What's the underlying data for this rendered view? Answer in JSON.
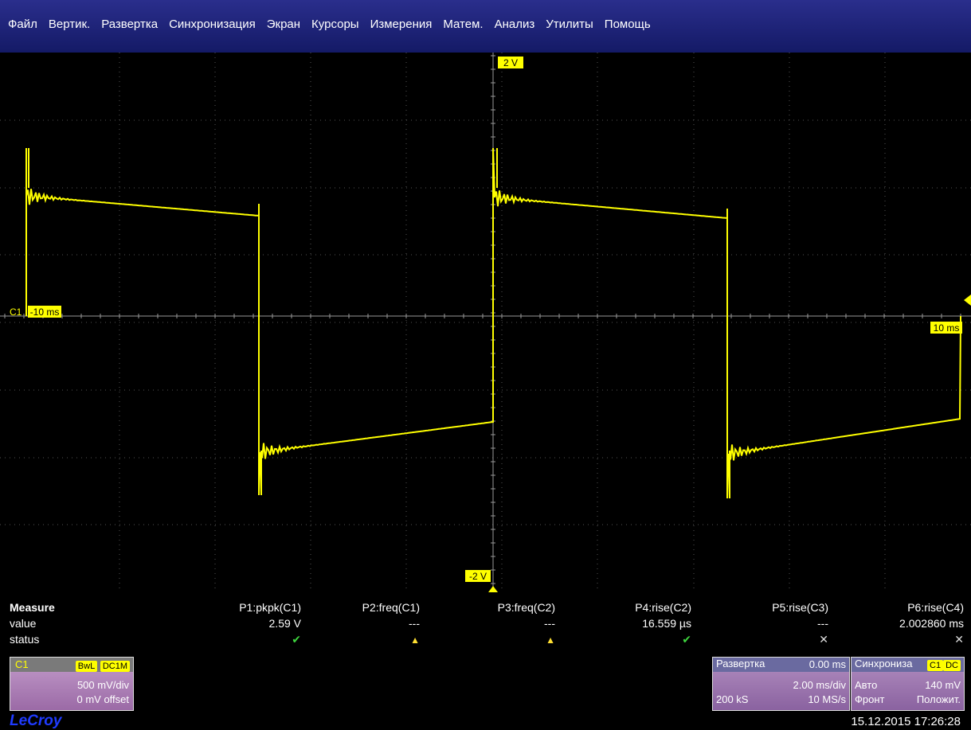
{
  "menu": [
    "Файл",
    "Вертик.",
    "Развертка",
    "Синхронизация",
    "Экран",
    "Курсоры",
    "Измерения",
    "Матем.",
    "Анализ",
    "Утилиты",
    "Помощь"
  ],
  "grid": {
    "top_label": "2 V",
    "bottom_label": "-2 V",
    "left_label": "-10 ms",
    "right_label": "10 ms",
    "channel_marker": "C1",
    "trace_color": "#ffff00"
  },
  "measure": {
    "title": "Measure",
    "value_label": "value",
    "status_label": "status",
    "params": [
      {
        "name": "P1:pkpk(C1)",
        "value": "2.59 V",
        "status": "ok"
      },
      {
        "name": "P2:freq(C1)",
        "value": "---",
        "status": "warn"
      },
      {
        "name": "P3:freq(C2)",
        "value": "---",
        "status": "warn"
      },
      {
        "name": "P4:rise(C2)",
        "value": "16.559 µs",
        "status": "ok"
      },
      {
        "name": "P5:rise(C3)",
        "value": "---",
        "status": "x"
      },
      {
        "name": "P6:rise(C4)",
        "value": "2.002860 ms",
        "status": "x"
      }
    ],
    "status_glyphs": {
      "ok": "✔",
      "warn": "▲",
      "x": "✕"
    }
  },
  "channel": {
    "name": "C1",
    "tag1": "BwL",
    "tag2": "DC1M",
    "vdiv": "500 mV/div",
    "offset": "0 mV offset"
  },
  "timebase": {
    "title": "Развертка",
    "delay": "0.00 ms",
    "tdiv": "2.00 ms/div",
    "samples": "200 kS",
    "rate": "10 MS/s"
  },
  "trigger": {
    "title": "Синхрониза",
    "tag1": "C1",
    "tag2": "DC",
    "mode": "Авто",
    "level": "140 mV",
    "type": "Фронт",
    "slope": "Положит."
  },
  "footer": {
    "logo": "LeCroy",
    "timestamp": "15.12.2015 17:26:28"
  }
}
